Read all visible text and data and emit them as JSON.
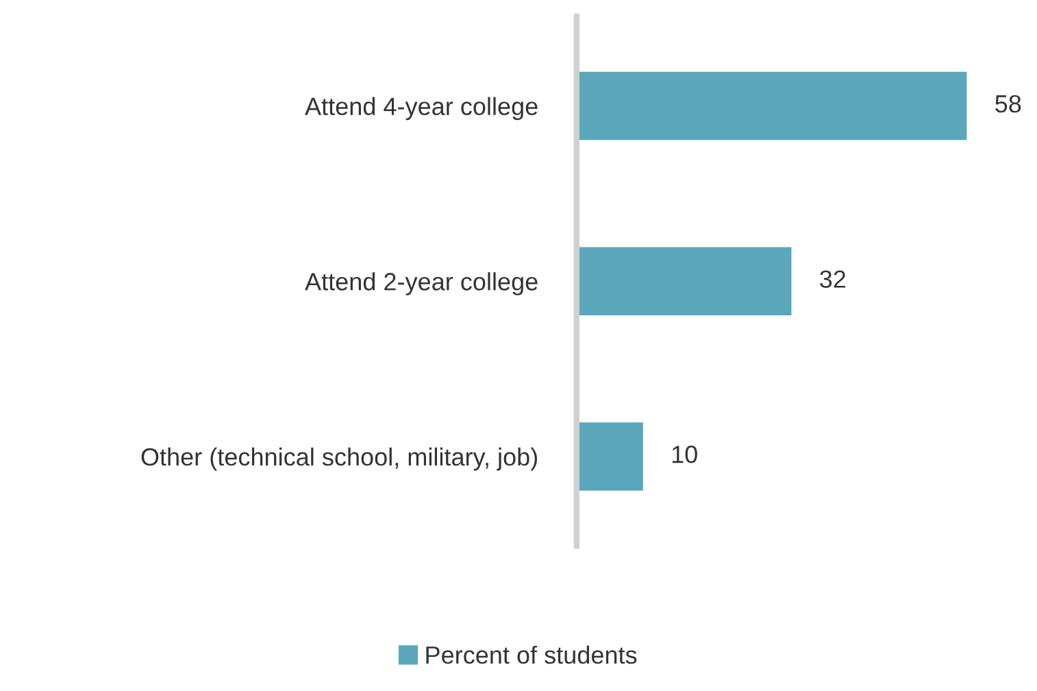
{
  "chart_data": {
    "type": "bar",
    "orientation": "horizontal",
    "categories": [
      "Attend 4-year college",
      "Attend 2-year college",
      "Other (technical school, military, job)"
    ],
    "series": [
      {
        "name": "Percent of students",
        "color": "#5aa7bc",
        "values": [
          58,
          32,
          10
        ]
      }
    ],
    "tick_labels": "y",
    "data_labels": true,
    "grid": false,
    "legend": "bottom"
  }
}
